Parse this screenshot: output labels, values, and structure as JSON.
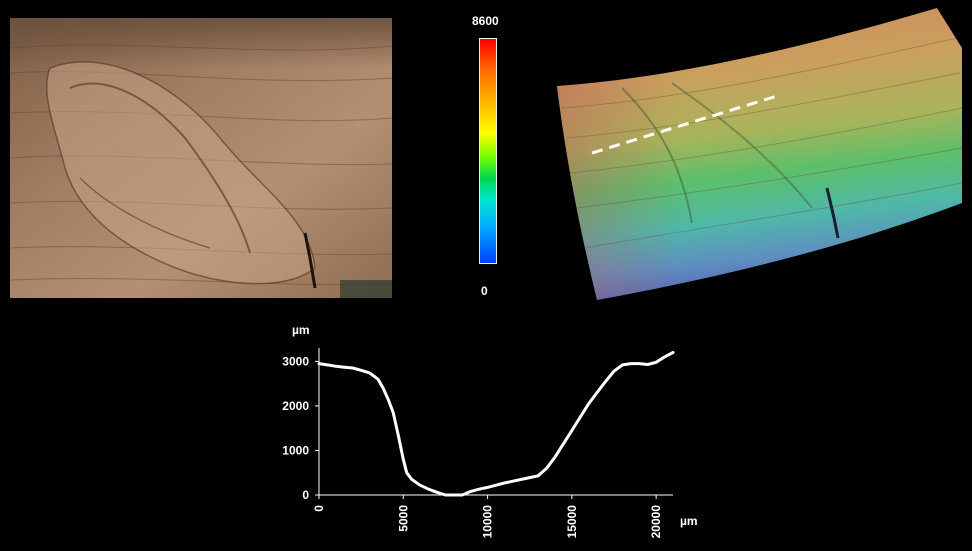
{
  "colorbar": {
    "max_label": "8600",
    "min_label": "0"
  },
  "chart_data": {
    "type": "line",
    "ylabel": "µm",
    "xlabel": "µm",
    "xlim": [
      0,
      21000
    ],
    "ylim": [
      0,
      3300
    ],
    "x_ticks": [
      "0",
      "5000",
      "10000",
      "15000",
      "20000"
    ],
    "y_ticks": [
      "0",
      "1000",
      "2000",
      "3000"
    ],
    "series": [
      {
        "x": [
          0,
          500,
          1000,
          1500,
          2000,
          2500,
          3000,
          3500,
          3800,
          4100,
          4400,
          4700,
          5000,
          5200,
          5500,
          6000,
          6500,
          7000,
          7500,
          8000,
          8500,
          9000,
          9500,
          10000,
          10500,
          11000,
          11500,
          12000,
          12500,
          13000,
          13500,
          14000,
          14500,
          15000,
          15500,
          16000,
          16500,
          17000,
          17500,
          18000,
          18500,
          19000,
          19500,
          20000,
          20500,
          21000
        ],
        "y": [
          2950,
          2920,
          2890,
          2870,
          2850,
          2800,
          2740,
          2600,
          2400,
          2150,
          1850,
          1350,
          800,
          500,
          350,
          220,
          130,
          60,
          0,
          0,
          0,
          80,
          130,
          170,
          220,
          270,
          310,
          350,
          390,
          430,
          600,
          850,
          1150,
          1450,
          1750,
          2050,
          2300,
          2550,
          2780,
          2920,
          2950,
          2950,
          2930,
          2980,
          3100,
          3200
        ]
      }
    ]
  }
}
